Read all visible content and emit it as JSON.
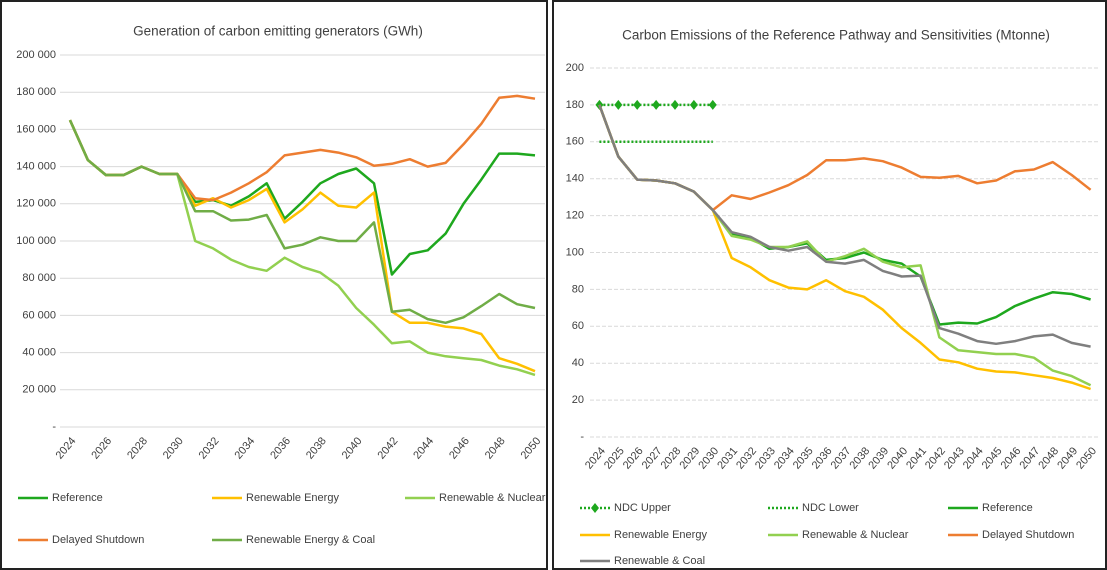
{
  "chart_data": [
    {
      "type": "line",
      "title": "Generation of carbon emitting generators (GWh)",
      "x": [
        2024,
        2025,
        2026,
        2027,
        2028,
        2029,
        2030,
        2031,
        2032,
        2033,
        2034,
        2035,
        2036,
        2037,
        2038,
        2039,
        2040,
        2041,
        2042,
        2043,
        2044,
        2045,
        2046,
        2047,
        2048,
        2049,
        2050
      ],
      "xlim": [
        2024,
        2050
      ],
      "xticks": [
        2024,
        2026,
        2028,
        2030,
        2032,
        2034,
        2036,
        2038,
        2040,
        2042,
        2044,
        2046,
        2048,
        2050
      ],
      "ylim": [
        0,
        200000
      ],
      "yticks": [
        {
          "value": 0,
          "label": "-"
        },
        {
          "value": 20000,
          "label": "20 000"
        },
        {
          "value": 40000,
          "label": "40 000"
        },
        {
          "value": 60000,
          "label": "60 000"
        },
        {
          "value": 80000,
          "label": "80 000"
        },
        {
          "value": 100000,
          "label": "100 000"
        },
        {
          "value": 120000,
          "label": "120 000"
        },
        {
          "value": 140000,
          "label": "140 000"
        },
        {
          "value": 160000,
          "label": "160 000"
        },
        {
          "value": 180000,
          "label": "180 000"
        },
        {
          "value": 200000,
          "label": "200 000"
        }
      ],
      "grid": true,
      "legend": "bottom",
      "series": [
        {
          "name": "Reference",
          "color": "#1ea81e",
          "values": [
            165000,
            143500,
            135500,
            135500,
            140000,
            136000,
            136000,
            121000,
            122000,
            119000,
            124000,
            131000,
            112000,
            121000,
            131000,
            136000,
            139000,
            131000,
            82000,
            93000,
            95000,
            104000,
            120000,
            133000,
            147000,
            147000,
            146000
          ]
        },
        {
          "name": "Renewable Energy",
          "color": "#ffc000",
          "values": [
            165000,
            143500,
            135500,
            135500,
            140000,
            136000,
            136000,
            119000,
            123000,
            118000,
            122000,
            128000,
            110000,
            117000,
            126000,
            119000,
            118000,
            126000,
            62000,
            56000,
            56000,
            54000,
            53000,
            50000,
            37000,
            34000,
            30000
          ]
        },
        {
          "name": "Renewable & Nuclear",
          "color": "#92d050",
          "values": [
            165000,
            143500,
            135500,
            135500,
            140000,
            136000,
            136000,
            100000,
            96000,
            90000,
            86000,
            84000,
            91000,
            86000,
            83000,
            76000,
            64000,
            55000,
            45000,
            46000,
            40000,
            38000,
            37000,
            36000,
            33000,
            31000,
            28000
          ]
        },
        {
          "name": "Delayed Shutdown",
          "color": "#ed7d31",
          "values": [
            165000,
            143500,
            135500,
            135500,
            140000,
            136000,
            136000,
            123000,
            122000,
            126000,
            131000,
            137000,
            146000,
            147500,
            149000,
            147500,
            145000,
            140500,
            141500,
            144000,
            140000,
            142000,
            152000,
            163000,
            177000,
            178000,
            176500
          ]
        },
        {
          "name": "Renewable Energy & Coal",
          "color": "#70ad47",
          "values": [
            165000,
            143500,
            135500,
            135500,
            140000,
            136000,
            136000,
            116000,
            116000,
            111000,
            111500,
            114000,
            96000,
            98000,
            102000,
            100000,
            100000,
            110000,
            62000,
            63000,
            58000,
            56000,
            59000,
            65000,
            71500,
            66000,
            64000
          ]
        }
      ]
    },
    {
      "type": "line",
      "title": "Carbon Emissions of the Reference Pathway and Sensitivities (Mtonne)",
      "categories": [
        "2024",
        "2025",
        "2026",
        "2027",
        "2028",
        "2029",
        "2030",
        "2031",
        "2032",
        "2033",
        "2034",
        "2035",
        "2036",
        "2037",
        "2038",
        "2039",
        "2040",
        "2041",
        "2042",
        "2043",
        "2044",
        "2045",
        "2046",
        "2047",
        "2048",
        "2049",
        "2050"
      ],
      "ylim": [
        0,
        200
      ],
      "yticks": [
        {
          "value": 0,
          "label": "-"
        },
        20,
        40,
        60,
        80,
        100,
        120,
        140,
        160,
        180,
        200
      ],
      "grid": true,
      "legend": "bottom",
      "series": [
        {
          "name": "NDC Upper",
          "color": "#1ea81e",
          "style": "dotted",
          "marker": "diamond",
          "values": [
            180,
            180,
            180,
            180,
            180,
            180,
            180,
            null,
            null,
            null,
            null,
            null,
            null,
            null,
            null,
            null,
            null,
            null,
            null,
            null,
            null,
            null,
            null,
            null,
            null,
            null,
            null
          ]
        },
        {
          "name": "NDC Lower",
          "color": "#1ea81e",
          "style": "dotted",
          "values": [
            160,
            160,
            160,
            160,
            160,
            160,
            160,
            null,
            null,
            null,
            null,
            null,
            null,
            null,
            null,
            null,
            null,
            null,
            null,
            null,
            null,
            null,
            null,
            null,
            null,
            null,
            null
          ]
        },
        {
          "name": "Reference",
          "color": "#1ea81e",
          "values": [
            180,
            152,
            139.5,
            139,
            137.5,
            133,
            123,
            110,
            108,
            102,
            103,
            105,
            96,
            97,
            100,
            96,
            94,
            87,
            61,
            62,
            61.5,
            65,
            71,
            75,
            78.5,
            77.5,
            74.5
          ]
        },
        {
          "name": "Renewable Energy",
          "color": "#ffc000",
          "values": [
            180,
            152,
            139.5,
            139,
            137.5,
            133,
            123,
            97,
            92,
            85,
            81,
            80,
            85,
            79,
            76,
            69,
            59,
            51,
            42,
            40.5,
            37,
            35.5,
            35,
            33.5,
            32,
            29.5,
            26
          ]
        },
        {
          "name": "Renewable & Nuclear",
          "color": "#92d050",
          "values": [
            180,
            152,
            139.5,
            139,
            137.5,
            133,
            123,
            109,
            107,
            103,
            103,
            106,
            95,
            98,
            102,
            95,
            92,
            93,
            54,
            47,
            46,
            45,
            45,
            43,
            36,
            33,
            28
          ]
        },
        {
          "name": "Delayed Shutdown",
          "color": "#ed7d31",
          "values": [
            180,
            152,
            139.5,
            139,
            137.5,
            133,
            123,
            131,
            129,
            132.5,
            136.5,
            142,
            150,
            150,
            151,
            149.5,
            146,
            141,
            140.5,
            141.5,
            137.5,
            139,
            144,
            145,
            149,
            142,
            134
          ]
        },
        {
          "name": "Renewable & Coal",
          "color": "#7f7f7f",
          "values": [
            180,
            152,
            139.5,
            139,
            137.5,
            133,
            123,
            111,
            108.5,
            103,
            101,
            103,
            95,
            94,
            96,
            90,
            87,
            87.5,
            59,
            56,
            52,
            50.5,
            52,
            54.5,
            55.5,
            51,
            49
          ]
        }
      ]
    }
  ]
}
